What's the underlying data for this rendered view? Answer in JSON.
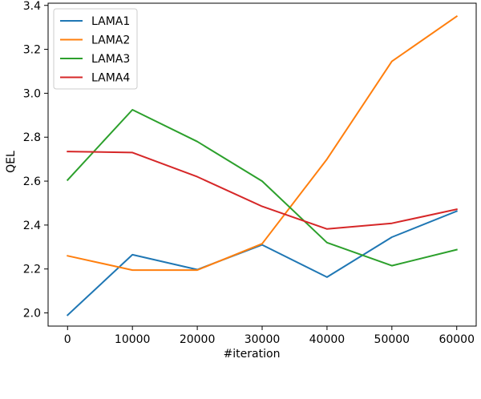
{
  "chart_data": {
    "type": "line",
    "xlabel": "#iteration",
    "ylabel": "QEL",
    "xlim": [
      -3000,
      63000
    ],
    "ylim": [
      1.94,
      3.41
    ],
    "xticks": [
      0,
      10000,
      20000,
      30000,
      40000,
      50000,
      60000
    ],
    "xtick_labels": [
      "0",
      "10000",
      "20000",
      "30000",
      "40000",
      "50000",
      "60000"
    ],
    "yticks": [
      2.0,
      2.2,
      2.4,
      2.6,
      2.8,
      3.0,
      3.2,
      3.4
    ],
    "ytick_labels": [
      "2.0",
      "2.2",
      "2.4",
      "2.6",
      "2.8",
      "3.0",
      "3.2",
      "3.4"
    ],
    "grid": false,
    "legend_position": "top-left",
    "x": [
      0,
      10000,
      20000,
      30000,
      40000,
      50000,
      60000
    ],
    "series": [
      {
        "name": "LAMA1",
        "color": "#1f77b4",
        "values": [
          1.99,
          2.265,
          2.197,
          2.31,
          2.163,
          2.345,
          2.463
        ]
      },
      {
        "name": "LAMA2",
        "color": "#ff7f0e",
        "values": [
          2.26,
          2.195,
          2.195,
          2.315,
          2.7,
          3.145,
          3.35
        ]
      },
      {
        "name": "LAMA3",
        "color": "#2ca02c",
        "values": [
          2.605,
          2.925,
          2.78,
          2.6,
          2.32,
          2.215,
          2.288
        ]
      },
      {
        "name": "LAMA4",
        "color": "#d62728",
        "values": [
          2.735,
          2.73,
          2.62,
          2.485,
          2.382,
          2.408,
          2.472
        ]
      }
    ]
  }
}
